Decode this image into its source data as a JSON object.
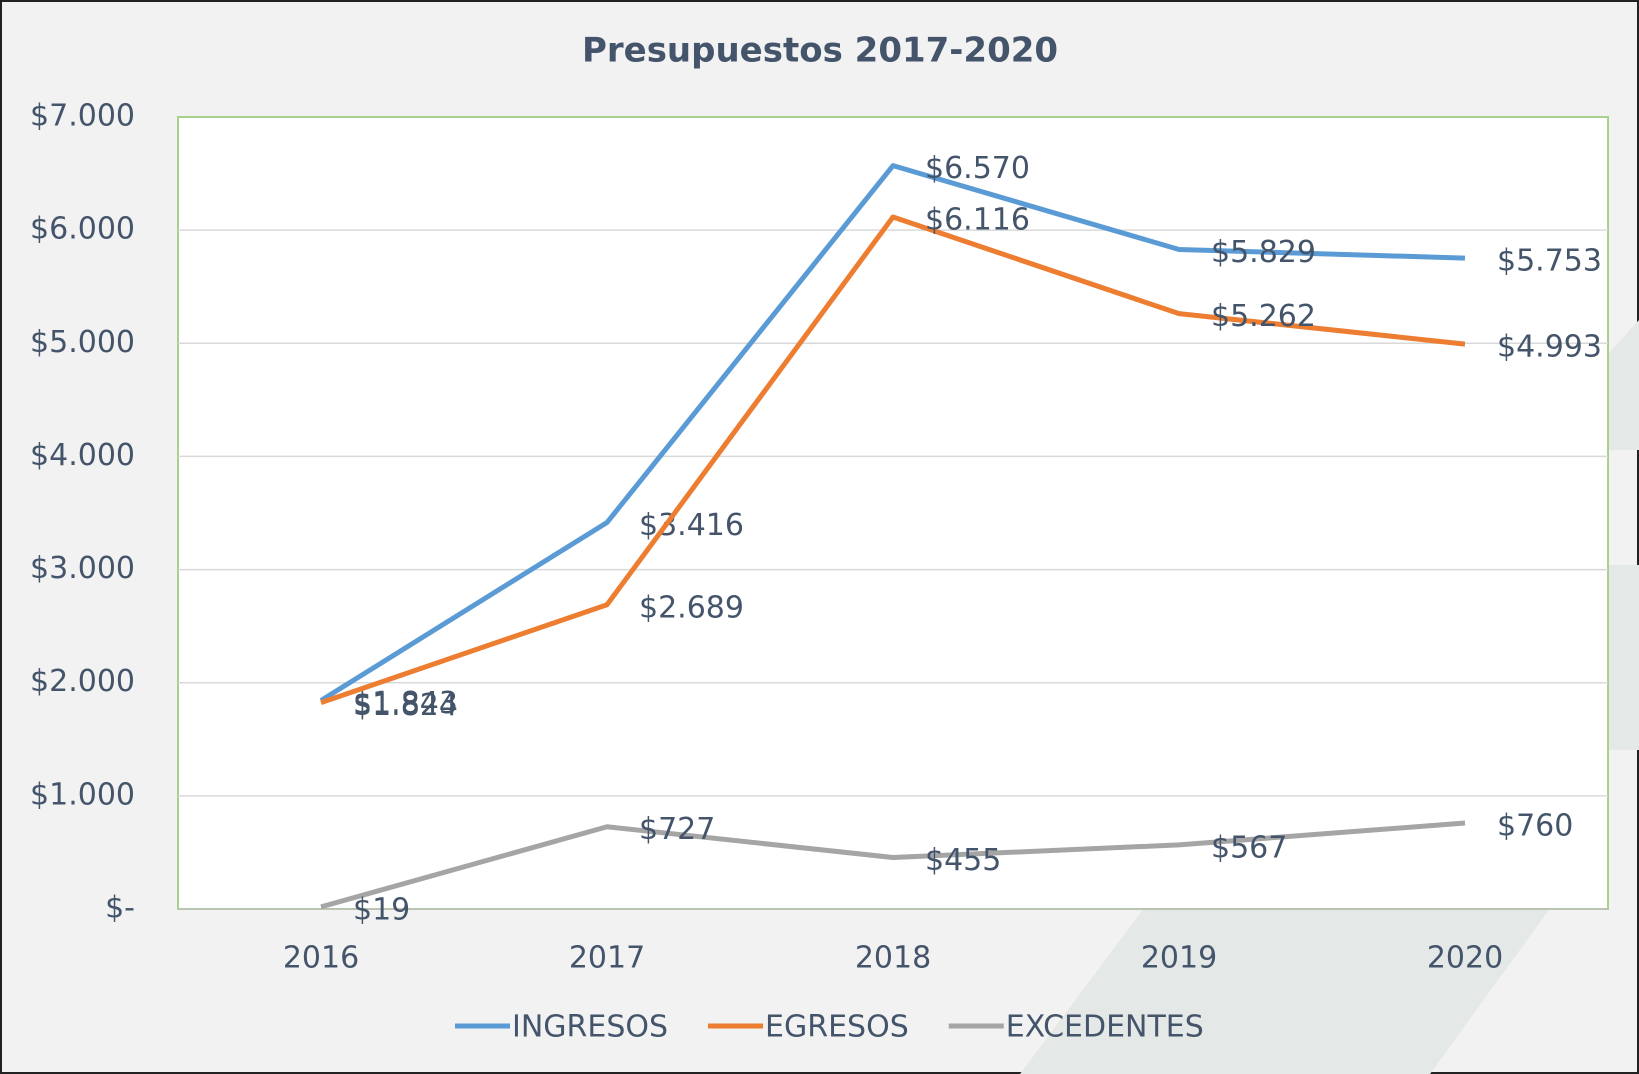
{
  "chart_data": {
    "type": "line",
    "title": "Presupuestos 2017-2020",
    "categories": [
      "2016",
      "2017",
      "2018",
      "2019",
      "2020"
    ],
    "series": [
      {
        "name": "INGRESOS",
        "color": "#5b9bd5",
        "values": [
          1843,
          3416,
          6570,
          5829,
          5753
        ],
        "value_labels": [
          "$1.843",
          "$3.416",
          "$6.570",
          "$5.829",
          "$5.753"
        ]
      },
      {
        "name": "EGRESOS",
        "color": "#ed7d31",
        "values": [
          1824,
          2689,
          6116,
          5262,
          4993
        ],
        "value_labels": [
          "$1.824",
          "$2.689",
          "$6.116",
          "$5.262",
          "$4.993"
        ]
      },
      {
        "name": "EXCEDENTES",
        "color": "#a5a5a5",
        "values": [
          19,
          727,
          455,
          567,
          760
        ],
        "value_labels": [
          "$19",
          "$727",
          "$455",
          "$567",
          "$760"
        ]
      }
    ],
    "ylim": [
      0,
      7000
    ],
    "yticks": [
      {
        "value": 0,
        "label": "$-"
      },
      {
        "value": 1000,
        "label": "$1.000"
      },
      {
        "value": 2000,
        "label": "$2.000"
      },
      {
        "value": 3000,
        "label": "$3.000"
      },
      {
        "value": 4000,
        "label": "$4.000"
      },
      {
        "value": 5000,
        "label": "$5.000"
      },
      {
        "value": 6000,
        "label": "$6.000"
      },
      {
        "value": 7000,
        "label": "$7.000"
      }
    ],
    "grid": true,
    "legend": "bottom"
  }
}
